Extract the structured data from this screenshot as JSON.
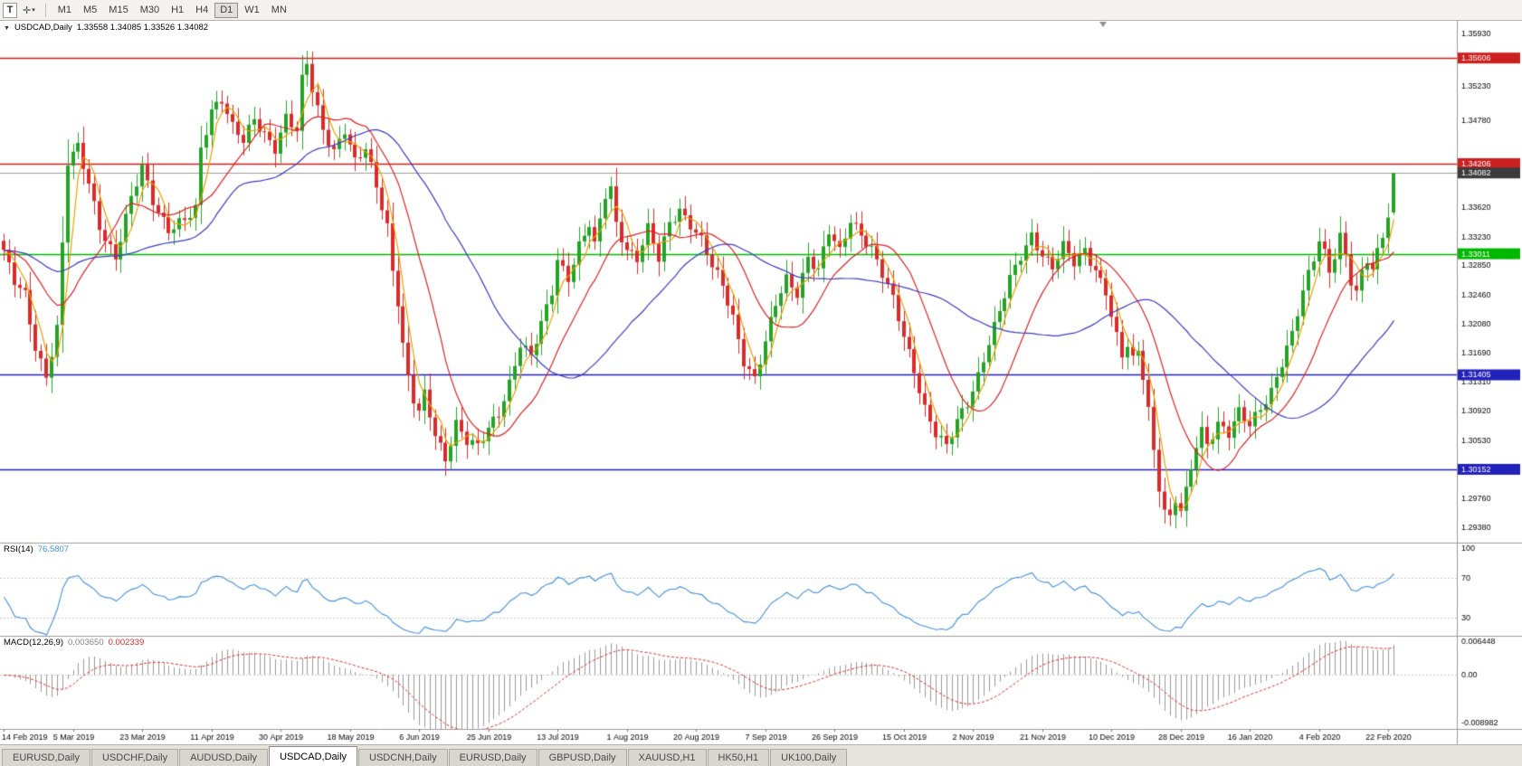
{
  "toolbar": {
    "text_tool_label": "T",
    "cursor_caret_icon": "▾",
    "cursor_glyph": "✛",
    "timeframes": [
      "M1",
      "M5",
      "M15",
      "M30",
      "H1",
      "H4",
      "D1",
      "W1",
      "MN"
    ],
    "active_timeframe": "D1"
  },
  "chart": {
    "collapse_icon": "▼",
    "symbol": "USDCAD,Daily",
    "ohlc": "1.33558 1.34085 1.33526 1.34082"
  },
  "rsi": {
    "label": "RSI(14)",
    "value": "76.5807",
    "period": 14,
    "line_color": "#3f8fde",
    "axis_labels": [
      "100",
      "70",
      "30"
    ],
    "level_lines": [
      70,
      30
    ]
  },
  "macd": {
    "label": "MACD(12,26,9)",
    "value_main": "0.003650",
    "value_signal": "0.002339",
    "fast": 12,
    "slow": 26,
    "signal": 9,
    "axis_labels": [
      "0.006448",
      "0.00",
      "-0.008982"
    ],
    "range": [
      -0.008982,
      0.006448
    ]
  },
  "tabs": [
    {
      "label": "EURUSD,Daily",
      "active": false
    },
    {
      "label": "USDCHF,Daily",
      "active": false
    },
    {
      "label": "AUDUSD,Daily",
      "active": false
    },
    {
      "label": "USDCAD,Daily",
      "active": true
    },
    {
      "label": "USDCNH,Daily",
      "active": false
    },
    {
      "label": "EURUSD,Daily",
      "active": false
    },
    {
      "label": "GBPUSD,Daily",
      "active": false
    },
    {
      "label": "XAUUSD,H1",
      "active": false
    },
    {
      "label": "HK50,H1",
      "active": false
    },
    {
      "label": "UK100,Daily",
      "active": false
    }
  ],
  "colors": {
    "background": "#ffffff",
    "candle_up": "#26a326",
    "candle_down": "#d92b2b",
    "level_red": "#cc1f1f",
    "level_green": "#00b800",
    "level_blue": "#2121bb",
    "current_price_line": "#9a9a9a",
    "current_price_badge": "#3b3b3b",
    "rsi_line": "#3f8fde",
    "macd_histogram": "#9a9a9a",
    "macd_signal": "#d92b2b",
    "axis_text": "#000000",
    "pane_border": "#9c9a96",
    "indicator_level_dotted": "#c6c6c6"
  },
  "chart_data": {
    "type": "candlestick",
    "symbol": "USDCAD",
    "timeframe": "Daily",
    "num_candles": 262,
    "visible_range": {
      "price_min": 1.2918,
      "price_max": 1.361,
      "date_start": "14 Feb 2019",
      "date_end": "22 Feb 2020"
    },
    "current": {
      "open": 1.33558,
      "high": 1.34085,
      "low": 1.33526,
      "close": 1.34082
    },
    "price_axis_labels": [
      "1.35930",
      "1.35230",
      "1.34780",
      "1.33620",
      "1.33230",
      "1.32850",
      "1.32460",
      "1.32080",
      "1.31690",
      "1.31310",
      "1.30920",
      "1.30530",
      "1.29760",
      "1.29380"
    ],
    "date_labels": [
      "14 Feb 2019",
      "5 Mar 2019",
      "23 Mar 2019",
      "11 Apr 2019",
      "30 Apr 2019",
      "18 May 2019",
      "6 Jun 2019",
      "25 Jun 2019",
      "13 Jul 2019",
      "1 Aug 2019",
      "20 Aug 2019",
      "7 Sep 2019",
      "26 Sep 2019",
      "15 Oct 2019",
      "2 Nov 2019",
      "21 Nov 2019",
      "10 Dec 2019",
      "28 Dec 2019",
      "16 Jan 2020",
      "4 Feb 2020",
      "22 Feb 2020"
    ],
    "horizontal_levels": [
      {
        "value": 1.35606,
        "label": "1.35606",
        "line_color": "#cc1f1f",
        "badge_color": "#cc1f1f",
        "type": "resistance"
      },
      {
        "value": 1.34206,
        "label": "1.34206",
        "line_color": "#cc1f1f",
        "badge_color": "#cc1f1f",
        "type": "resistance"
      },
      {
        "value": 1.34082,
        "label": "1.34082",
        "line_color": "#9a9a9a",
        "badge_color": "#3b3b3b",
        "type": "current-price"
      },
      {
        "value": 1.33011,
        "label": "1.33011",
        "line_color": "#00b800",
        "badge_color": "#00b800",
        "type": "level"
      },
      {
        "value": 1.31405,
        "label": "1.31405",
        "line_color": "#2121bb",
        "badge_color": "#2121bb",
        "type": "support"
      },
      {
        "value": 1.30152,
        "label": "1.30152",
        "line_color": "#2121bb",
        "badge_color": "#2121bb",
        "type": "support"
      }
    ],
    "moving_averages": [
      {
        "period": 4,
        "color": "#e8a000"
      },
      {
        "period": 13,
        "color": "#dd2222"
      },
      {
        "period": 34,
        "color": "#3c3cc0"
      }
    ],
    "close_waypoints": [
      [
        0,
        1.33
      ],
      [
        2,
        1.3262
      ],
      [
        4,
        1.3248
      ],
      [
        6,
        1.318
      ],
      [
        8,
        1.314
      ],
      [
        10,
        1.32
      ],
      [
        12,
        1.342
      ],
      [
        14,
        1.3442
      ],
      [
        16,
        1.3398
      ],
      [
        18,
        1.334
      ],
      [
        21,
        1.3292
      ],
      [
        24,
        1.3372
      ],
      [
        26,
        1.3418
      ],
      [
        28,
        1.3375
      ],
      [
        31,
        1.3332
      ],
      [
        34,
        1.3342
      ],
      [
        36,
        1.336
      ],
      [
        37,
        1.344
      ],
      [
        39,
        1.3495
      ],
      [
        41,
        1.3508
      ],
      [
        43,
        1.3468
      ],
      [
        45,
        1.3448
      ],
      [
        47,
        1.3478
      ],
      [
        49,
        1.3462
      ],
      [
        51,
        1.3444
      ],
      [
        53,
        1.3482
      ],
      [
        55,
        1.3462
      ],
      [
        56,
        1.3528
      ],
      [
        57,
        1.3552
      ],
      [
        58,
        1.3518
      ],
      [
        60,
        1.3468
      ],
      [
        62,
        1.344
      ],
      [
        64,
        1.3466
      ],
      [
        66,
        1.342
      ],
      [
        68,
        1.3438
      ],
      [
        70,
        1.3392
      ],
      [
        72,
        1.334
      ],
      [
        73,
        1.3282
      ],
      [
        74,
        1.324
      ],
      [
        75,
        1.318
      ],
      [
        76,
        1.3135
      ],
      [
        77,
        1.3105
      ],
      [
        78,
        1.3088
      ],
      [
        79,
        1.3112
      ],
      [
        81,
        1.3062
      ],
      [
        83,
        1.3032
      ],
      [
        85,
        1.3078
      ],
      [
        87,
        1.3052
      ],
      [
        89,
        1.3042
      ],
      [
        91,
        1.3068
      ],
      [
        93,
        1.3092
      ],
      [
        95,
        1.3132
      ],
      [
        97,
        1.3182
      ],
      [
        99,
        1.3162
      ],
      [
        101,
        1.3205
      ],
      [
        103,
        1.3252
      ],
      [
        104,
        1.3295
      ],
      [
        106,
        1.3272
      ],
      [
        108,
        1.3312
      ],
      [
        110,
        1.3338
      ],
      [
        111,
        1.3308
      ],
      [
        113,
        1.3378
      ],
      [
        114,
        1.3388
      ],
      [
        115,
        1.3342
      ],
      [
        117,
        1.331
      ],
      [
        119,
        1.3295
      ],
      [
        121,
        1.3332
      ],
      [
        123,
        1.3292
      ],
      [
        125,
        1.3342
      ],
      [
        127,
        1.3362
      ],
      [
        129,
        1.3342
      ],
      [
        131,
        1.3318
      ],
      [
        133,
        1.3282
      ],
      [
        135,
        1.3258
      ],
      [
        137,
        1.3218
      ],
      [
        139,
        1.3162
      ],
      [
        141,
        1.3135
      ],
      [
        143,
        1.3182
      ],
      [
        145,
        1.3232
      ],
      [
        147,
        1.3268
      ],
      [
        149,
        1.3252
      ],
      [
        151,
        1.3298
      ],
      [
        153,
        1.3278
      ],
      [
        155,
        1.3328
      ],
      [
        157,
        1.3302
      ],
      [
        159,
        1.3348
      ],
      [
        161,
        1.333
      ],
      [
        163,
        1.3308
      ],
      [
        165,
        1.3272
      ],
      [
        167,
        1.3238
      ],
      [
        169,
        1.3192
      ],
      [
        171,
        1.315
      ],
      [
        173,
        1.3098
      ],
      [
        175,
        1.3062
      ],
      [
        177,
        1.3042
      ],
      [
        179,
        1.3078
      ],
      [
        181,
        1.3105
      ],
      [
        183,
        1.3142
      ],
      [
        185,
        1.3185
      ],
      [
        187,
        1.3222
      ],
      [
        189,
        1.3265
      ],
      [
        191,
        1.3298
      ],
      [
        193,
        1.3328
      ],
      [
        195,
        1.3302
      ],
      [
        197,
        1.3282
      ],
      [
        199,
        1.3308
      ],
      [
        201,
        1.3288
      ],
      [
        203,
        1.3308
      ],
      [
        205,
        1.3282
      ],
      [
        207,
        1.3252
      ],
      [
        208,
        1.3218
      ],
      [
        209,
        1.3188
      ],
      [
        210,
        1.3162
      ],
      [
        211,
        1.3178
      ],
      [
        212,
        1.3158
      ],
      [
        213,
        1.3172
      ],
      [
        214,
        1.3142
      ],
      [
        215,
        1.3098
      ],
      [
        216,
        1.3042
      ],
      [
        217,
        1.2995
      ],
      [
        218,
        1.2962
      ],
      [
        219,
        1.2948
      ],
      [
        220,
        1.2972
      ],
      [
        221,
        1.2958
      ],
      [
        222,
        1.2982
      ],
      [
        223,
        1.3015
      ],
      [
        224,
        1.3048
      ],
      [
        225,
        1.3068
      ],
      [
        226,
        1.3052
      ],
      [
        228,
        1.3078
      ],
      [
        230,
        1.3062
      ],
      [
        232,
        1.3088
      ],
      [
        234,
        1.3072
      ],
      [
        236,
        1.3098
      ],
      [
        238,
        1.3122
      ],
      [
        240,
        1.3158
      ],
      [
        242,
        1.3192
      ],
      [
        244,
        1.3248
      ],
      [
        246,
        1.3295
      ],
      [
        247,
        1.3322
      ],
      [
        248,
        1.3305
      ],
      [
        249,
        1.3282
      ],
      [
        250,
        1.3302
      ],
      [
        251,
        1.3325
      ],
      [
        252,
        1.3298
      ],
      [
        253,
        1.3262
      ],
      [
        254,
        1.3245
      ],
      [
        255,
        1.3272
      ],
      [
        256,
        1.3292
      ],
      [
        257,
        1.328
      ],
      [
        258,
        1.3305
      ],
      [
        259,
        1.333
      ],
      [
        260,
        1.3356
      ],
      [
        261,
        1.34082
      ]
    ]
  }
}
